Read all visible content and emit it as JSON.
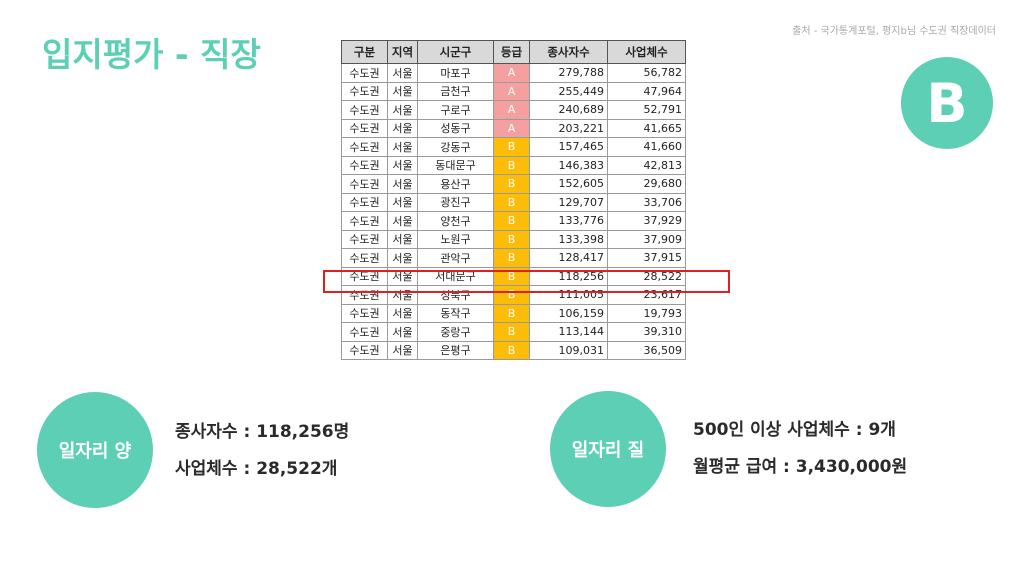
{
  "title": "입지평가 - 직장",
  "source": "출처 - 국가통계포털, 평지b님 수도권 직장데이터",
  "grade": "B",
  "table": {
    "headers": [
      "구분",
      "지역",
      "시군구",
      "등급",
      "종사자수",
      "사업체수"
    ],
    "rows": [
      [
        "수도권",
        "서울",
        "마포구",
        "A",
        "279,788",
        "56,782"
      ],
      [
        "수도권",
        "서울",
        "금천구",
        "A",
        "255,449",
        "47,964"
      ],
      [
        "수도권",
        "서울",
        "구로구",
        "A",
        "240,689",
        "52,791"
      ],
      [
        "수도권",
        "서울",
        "성동구",
        "A",
        "203,221",
        "41,665"
      ],
      [
        "수도권",
        "서울",
        "강동구",
        "B",
        "157,465",
        "41,660"
      ],
      [
        "수도권",
        "서울",
        "동대문구",
        "B",
        "146,383",
        "42,813"
      ],
      [
        "수도권",
        "서울",
        "용산구",
        "B",
        "152,605",
        "29,680"
      ],
      [
        "수도권",
        "서울",
        "광진구",
        "B",
        "129,707",
        "33,706"
      ],
      [
        "수도권",
        "서울",
        "양천구",
        "B",
        "133,776",
        "37,929"
      ],
      [
        "수도권",
        "서울",
        "노원구",
        "B",
        "133,398",
        "37,909"
      ],
      [
        "수도권",
        "서울",
        "관악구",
        "B",
        "128,417",
        "37,915"
      ],
      [
        "수도권",
        "서울",
        "서대문구",
        "B",
        "118,256",
        "28,522"
      ],
      [
        "수도권",
        "서울",
        "성북구",
        "B",
        "111,005",
        "23,617"
      ],
      [
        "수도권",
        "서울",
        "동작구",
        "B",
        "106,159",
        "19,793"
      ],
      [
        "수도권",
        "서울",
        "중랑구",
        "B",
        "113,144",
        "39,310"
      ],
      [
        "수도권",
        "서울",
        "은평구",
        "B",
        "109,031",
        "36,509"
      ]
    ],
    "highlight_row": 11
  },
  "jobs_quantity": {
    "label": "일자리 양",
    "lines": [
      "종사자수 : 118,256명",
      "사업체수 : 28,522개"
    ]
  },
  "jobs_quality": {
    "label": "일자리 질",
    "lines": [
      "500인 이상 사업체수 : 9개",
      "월평균 급여 : 3,430,000원"
    ]
  },
  "colors": {
    "accent": "#5ccfb4",
    "grade_a": "#f4a0a0",
    "grade_b": "#fbbd08",
    "highlight": "#e02020"
  }
}
